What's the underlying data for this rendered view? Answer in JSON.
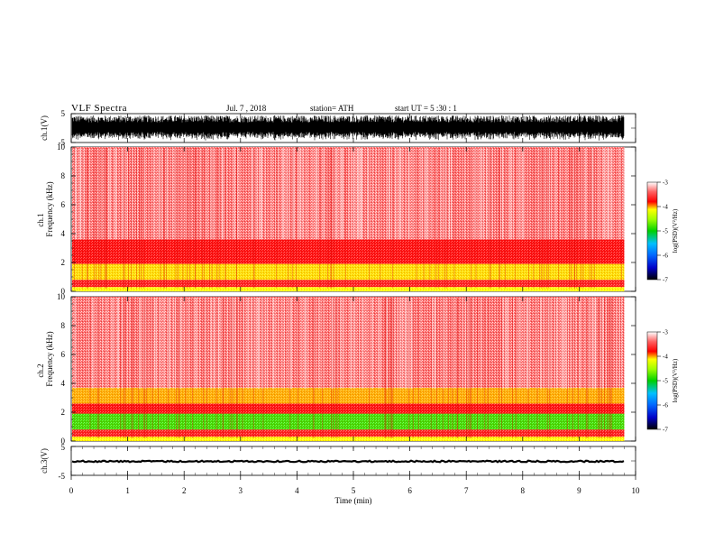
{
  "header": {
    "title": "VLF  Spectra",
    "date": "Jul.  7  , 2018",
    "station": "station= ATH",
    "start": "start  UT  =    5  :30 : 1"
  },
  "colors": {
    "waveform": "#000000",
    "background": "#ffffff",
    "colormap": [
      "#000000",
      "#0000c8",
      "#0066ff",
      "#00c0ff",
      "#00d000",
      "#a0ff00",
      "#ffff00",
      "#ff0000",
      "#ff6060",
      "#ffffff"
    ]
  },
  "chart_data": [
    {
      "type": "line",
      "name": "ch1-waveform",
      "ylabel": "ch.1(V)",
      "ylim": [
        -5,
        5
      ],
      "yticks": [
        "5",
        "-5"
      ],
      "xlim": [
        0,
        10
      ],
      "amplitude": 5,
      "duration_min": 9.8
    },
    {
      "type": "heatmap",
      "name": "ch1-spectrogram",
      "channel": "ch.1",
      "ylabel": "Frequency (kHz)",
      "ylim": [
        0,
        10
      ],
      "yticks": [
        "0",
        "2",
        "4",
        "6",
        "8",
        "10"
      ],
      "xlim": [
        0,
        10
      ],
      "bands": [
        {
          "from": 0,
          "to": 0.3,
          "color": "#ffff00"
        },
        {
          "from": 0.3,
          "to": 0.8,
          "color": "#ff2020"
        },
        {
          "from": 0.8,
          "to": 1.9,
          "color": "#ffe000"
        },
        {
          "from": 1.9,
          "to": 3.6,
          "color": "#ff1010"
        },
        {
          "from": 3.6,
          "to": 10,
          "color": "#ff7070"
        }
      ]
    },
    {
      "type": "heatmap",
      "name": "ch2-spectrogram",
      "channel": "ch.2",
      "ylabel": "Frequency (kHz)",
      "ylim": [
        0,
        10
      ],
      "yticks": [
        "0",
        "2",
        "4",
        "6",
        "8",
        "10"
      ],
      "xlim": [
        0,
        10
      ],
      "bands": [
        {
          "from": 0,
          "to": 0.3,
          "color": "#ffff00"
        },
        {
          "from": 0.3,
          "to": 0.8,
          "color": "#ff2020"
        },
        {
          "from": 0.8,
          "to": 1.9,
          "color": "#40e000"
        },
        {
          "from": 1.9,
          "to": 2.6,
          "color": "#ff1010"
        },
        {
          "from": 2.6,
          "to": 3.7,
          "color": "#ffb000"
        },
        {
          "from": 3.7,
          "to": 10,
          "color": "#ff7070"
        }
      ]
    },
    {
      "type": "line",
      "name": "ch3-waveform",
      "ylabel": "ch.3(V)",
      "ylim": [
        -5,
        5
      ],
      "yticks": [
        "5",
        "-5"
      ],
      "xlim": [
        0,
        10
      ],
      "level": 0,
      "duration_min": 9.8
    }
  ],
  "colorbar": {
    "label": "log(PSD)(V²/Hz)",
    "range": [
      -7,
      -3
    ],
    "ticks": [
      "-3",
      "-4",
      "-5",
      "-6",
      "-7"
    ]
  },
  "xaxis": {
    "label": "Time  (min)",
    "range": [
      0,
      10
    ],
    "ticks": [
      "0",
      "1",
      "2",
      "3",
      "4",
      "5",
      "6",
      "7",
      "8",
      "9",
      "10"
    ]
  }
}
